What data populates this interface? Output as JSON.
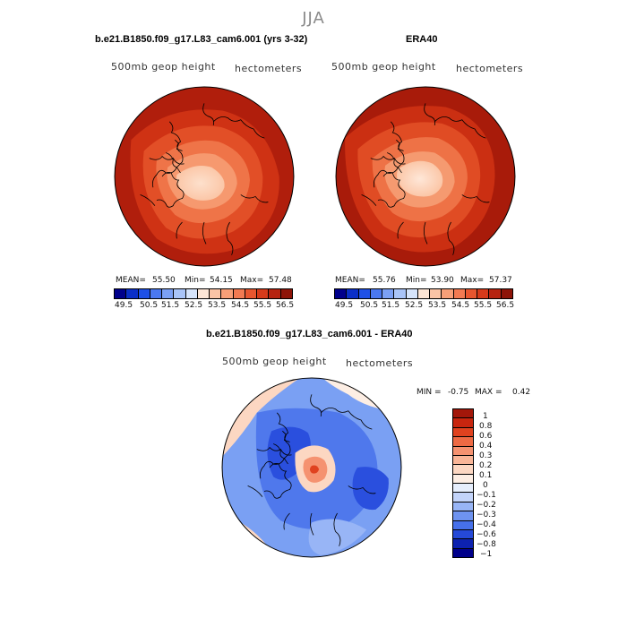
{
  "season": "JJA",
  "panels": {
    "model": {
      "title": "b.e21.B1850.f09_g17.L83_cam6.001 (yrs 3-32)",
      "variable": "500mb geop height",
      "units": "hectometers",
      "mean_label": "MEAN=",
      "mean": "55.50",
      "min_label": "Min=",
      "min": "54.15",
      "max_label": "Max=",
      "max": "57.48"
    },
    "obs": {
      "title": "ERA40",
      "variable": "500mb geop height",
      "units": "hectometers",
      "mean_label": "MEAN=",
      "mean": "55.76",
      "min_label": "Min=",
      "min": "53.90",
      "max_label": "Max=",
      "max": "57.37"
    },
    "diff": {
      "title": "b.e21.B1850.f09_g17.L83_cam6.001 - ERA40",
      "variable": "500mb geop height",
      "units": "hectometers",
      "min_label": "MIN =",
      "min": "-0.75",
      "max_label": "MAX =",
      "max": "0.42"
    }
  },
  "colorbar_abs": {
    "ticks": [
      "49.5",
      "50.5",
      "51.5",
      "52.5",
      "53.5",
      "54.5",
      "55.5",
      "56.5"
    ],
    "colors": [
      "#00008b",
      "#0a2fc8",
      "#1e50e6",
      "#4a78f0",
      "#7ba0f5",
      "#a9c4f8",
      "#d6e4fb",
      "#fde6d6",
      "#fbc4a6",
      "#f79f78",
      "#f27a52",
      "#e8562f",
      "#d63a1a",
      "#b62310",
      "#8e1408"
    ]
  },
  "colorbar_diff": {
    "ticks": [
      "1",
      "0.8",
      "0.6",
      "0.4",
      "0.3",
      "0.2",
      "0.1",
      "0",
      "−0.1",
      "−0.2",
      "−0.3",
      "−0.4",
      "−0.6",
      "−0.8",
      "−1"
    ],
    "colors": [
      "#a3170a",
      "#c8260f",
      "#e0421f",
      "#ee6a44",
      "#f59270",
      "#f9b597",
      "#fcd7c2",
      "#fdeee4",
      "#e6eefc",
      "#c3d4fa",
      "#98b5f6",
      "#6e93f0",
      "#4670ea",
      "#2549d8",
      "#0d22b0",
      "#00008b"
    ]
  }
}
